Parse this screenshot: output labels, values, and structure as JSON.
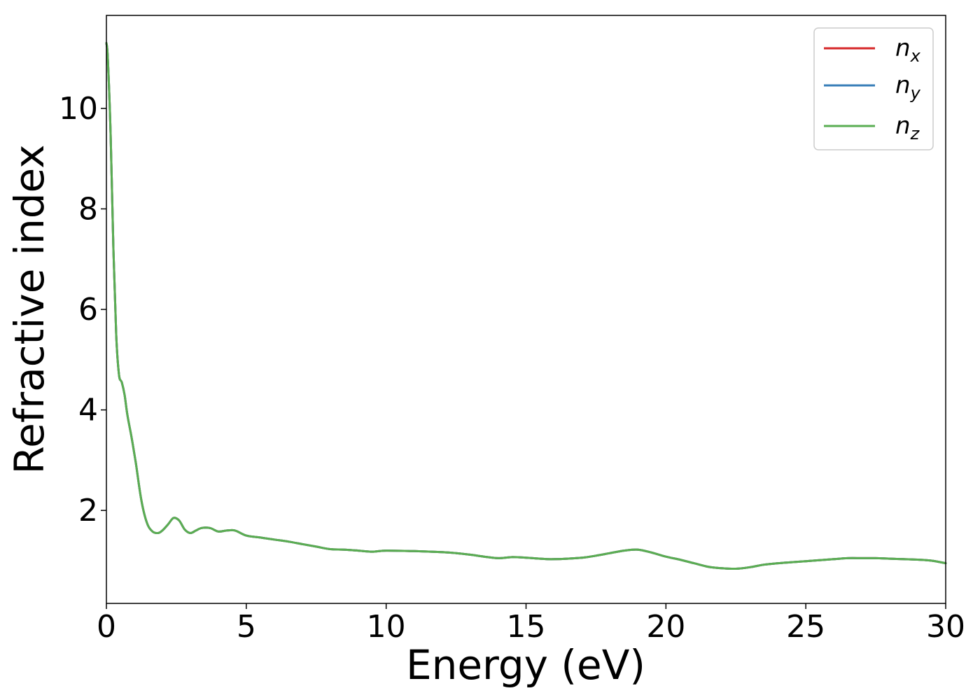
{
  "chart_data": {
    "type": "line",
    "title": "",
    "xlabel": "Energy (eV)",
    "ylabel": "Refractive index",
    "xlim": [
      0,
      30
    ],
    "ylim": [
      0.15,
      11.85
    ],
    "xticks": [
      0,
      5,
      10,
      15,
      20,
      25,
      30
    ],
    "yticks": [
      2,
      4,
      6,
      8,
      10
    ],
    "grid": false,
    "legend_position": "top-right",
    "series": [
      {
        "name": "n_x",
        "legend_main": "n",
        "legend_sub": "x",
        "color": "#d62728",
        "x": [
          0.0,
          0.05,
          0.15,
          0.25,
          0.35,
          0.45,
          0.55,
          0.65,
          0.75,
          0.9,
          1.05,
          1.25,
          1.45,
          1.65,
          1.85,
          2.0,
          2.2,
          2.4,
          2.6,
          2.8,
          3.0,
          3.2,
          3.4,
          3.7,
          4.0,
          4.3,
          4.6,
          5.0,
          5.5,
          6.0,
          6.5,
          7.0,
          7.5,
          8.0,
          8.5,
          9.0,
          9.5,
          10.0,
          11.0,
          12.0,
          12.5,
          13.0,
          13.5,
          14.0,
          14.5,
          15.0,
          15.5,
          16.0,
          17.0,
          17.5,
          18.0,
          18.5,
          19.0,
          19.5,
          20.0,
          20.5,
          21.0,
          21.5,
          22.0,
          22.5,
          23.0,
          23.5,
          24.0,
          24.5,
          25.0,
          25.5,
          26.0,
          26.5,
          27.0,
          27.5,
          28.0,
          28.5,
          29.0,
          29.5,
          30.0
        ],
        "y": [
          11.3,
          11.0,
          9.5,
          7.2,
          5.5,
          4.7,
          4.55,
          4.3,
          3.9,
          3.45,
          2.95,
          2.2,
          1.75,
          1.58,
          1.55,
          1.6,
          1.72,
          1.85,
          1.8,
          1.62,
          1.55,
          1.6,
          1.65,
          1.65,
          1.58,
          1.6,
          1.6,
          1.5,
          1.46,
          1.42,
          1.38,
          1.33,
          1.28,
          1.23,
          1.22,
          1.2,
          1.18,
          1.2,
          1.19,
          1.17,
          1.15,
          1.12,
          1.08,
          1.05,
          1.07,
          1.06,
          1.04,
          1.03,
          1.06,
          1.1,
          1.15,
          1.2,
          1.22,
          1.16,
          1.08,
          1.02,
          0.95,
          0.88,
          0.85,
          0.84,
          0.87,
          0.92,
          0.95,
          0.97,
          0.99,
          1.01,
          1.03,
          1.05,
          1.05,
          1.05,
          1.04,
          1.03,
          1.02,
          1.0,
          0.95
        ]
      },
      {
        "name": "n_y",
        "legend_main": "n",
        "legend_sub": "y",
        "color": "#377eb8",
        "x": [
          0.0,
          0.05,
          0.15,
          0.25,
          0.35,
          0.45,
          0.55,
          0.65,
          0.75,
          0.9,
          1.05,
          1.25,
          1.45,
          1.65,
          1.85,
          2.0,
          2.2,
          2.4,
          2.6,
          2.8,
          3.0,
          3.2,
          3.4,
          3.7,
          4.0,
          4.3,
          4.6,
          5.0,
          5.5,
          6.0,
          6.5,
          7.0,
          7.5,
          8.0,
          8.5,
          9.0,
          9.5,
          10.0,
          11.0,
          12.0,
          12.5,
          13.0,
          13.5,
          14.0,
          14.5,
          15.0,
          15.5,
          16.0,
          17.0,
          17.5,
          18.0,
          18.5,
          19.0,
          19.5,
          20.0,
          20.5,
          21.0,
          21.5,
          22.0,
          22.5,
          23.0,
          23.5,
          24.0,
          24.5,
          25.0,
          25.5,
          26.0,
          26.5,
          27.0,
          27.5,
          28.0,
          28.5,
          29.0,
          29.5,
          30.0
        ],
        "y": [
          11.3,
          11.0,
          9.5,
          7.2,
          5.5,
          4.7,
          4.55,
          4.3,
          3.9,
          3.45,
          2.95,
          2.2,
          1.75,
          1.58,
          1.55,
          1.6,
          1.72,
          1.85,
          1.8,
          1.62,
          1.55,
          1.6,
          1.65,
          1.65,
          1.58,
          1.6,
          1.6,
          1.5,
          1.46,
          1.42,
          1.38,
          1.33,
          1.28,
          1.23,
          1.22,
          1.2,
          1.18,
          1.2,
          1.19,
          1.17,
          1.15,
          1.12,
          1.08,
          1.05,
          1.07,
          1.06,
          1.04,
          1.03,
          1.06,
          1.1,
          1.15,
          1.2,
          1.22,
          1.16,
          1.08,
          1.02,
          0.95,
          0.88,
          0.85,
          0.84,
          0.87,
          0.92,
          0.95,
          0.97,
          0.99,
          1.01,
          1.03,
          1.05,
          1.05,
          1.05,
          1.04,
          1.03,
          1.02,
          1.0,
          0.95
        ]
      },
      {
        "name": "n_z",
        "legend_main": "n",
        "legend_sub": "z",
        "color": "#5aad52",
        "x": [
          0.0,
          0.05,
          0.15,
          0.25,
          0.35,
          0.45,
          0.55,
          0.65,
          0.75,
          0.9,
          1.05,
          1.25,
          1.45,
          1.65,
          1.85,
          2.0,
          2.2,
          2.4,
          2.6,
          2.8,
          3.0,
          3.2,
          3.4,
          3.7,
          4.0,
          4.3,
          4.6,
          5.0,
          5.5,
          6.0,
          6.5,
          7.0,
          7.5,
          8.0,
          8.5,
          9.0,
          9.5,
          10.0,
          11.0,
          12.0,
          12.5,
          13.0,
          13.5,
          14.0,
          14.5,
          15.0,
          15.5,
          16.0,
          17.0,
          17.5,
          18.0,
          18.5,
          19.0,
          19.5,
          20.0,
          20.5,
          21.0,
          21.5,
          22.0,
          22.5,
          23.0,
          23.5,
          24.0,
          24.5,
          25.0,
          25.5,
          26.0,
          26.5,
          27.0,
          27.5,
          28.0,
          28.5,
          29.0,
          29.5,
          30.0
        ],
        "y": [
          11.3,
          11.0,
          9.5,
          7.2,
          5.5,
          4.7,
          4.55,
          4.3,
          3.9,
          3.45,
          2.95,
          2.2,
          1.75,
          1.58,
          1.55,
          1.6,
          1.72,
          1.85,
          1.8,
          1.62,
          1.55,
          1.6,
          1.65,
          1.65,
          1.58,
          1.6,
          1.6,
          1.5,
          1.46,
          1.42,
          1.38,
          1.33,
          1.28,
          1.23,
          1.22,
          1.2,
          1.18,
          1.2,
          1.19,
          1.17,
          1.15,
          1.12,
          1.08,
          1.05,
          1.07,
          1.06,
          1.04,
          1.03,
          1.06,
          1.1,
          1.15,
          1.2,
          1.22,
          1.16,
          1.08,
          1.02,
          0.95,
          0.88,
          0.85,
          0.84,
          0.87,
          0.92,
          0.95,
          0.97,
          0.99,
          1.01,
          1.03,
          1.05,
          1.05,
          1.05,
          1.04,
          1.03,
          1.02,
          1.0,
          0.95
        ]
      }
    ]
  }
}
